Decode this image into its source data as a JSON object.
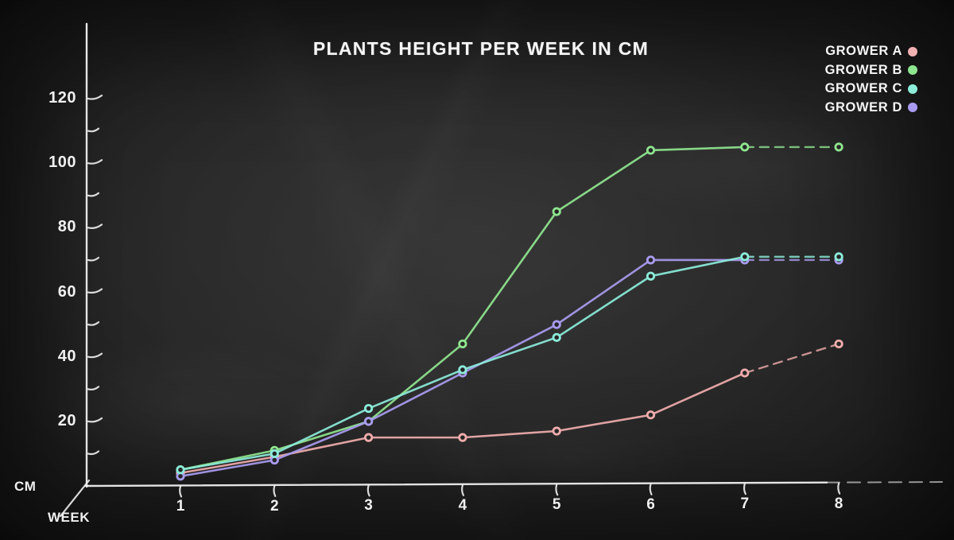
{
  "title": "PLANTS HEIGHT PER WEEK IN CM",
  "legend": [
    {
      "label": "GROWER A",
      "color": "#f2b0b3"
    },
    {
      "label": "GROWER B",
      "color": "#8fe58f"
    },
    {
      "label": "GROWER C",
      "color": "#8cecda"
    },
    {
      "label": "GROWER D",
      "color": "#a99cf0"
    }
  ],
  "axes": {
    "y_unit_label": "CM",
    "x_unit_label": "WEEK",
    "y_major_tick_labels": [
      "20",
      "40",
      "60",
      "80",
      "100",
      "120"
    ],
    "x_tick_labels": [
      "1",
      "2",
      "3",
      "4",
      "5",
      "6",
      "7",
      "8"
    ]
  },
  "chart_data": {
    "type": "line",
    "title": "PLANTS HEIGHT PER WEEK IN CM",
    "xlabel": "WEEK",
    "ylabel": "CM",
    "x": [
      1,
      2,
      3,
      4,
      5,
      6,
      7,
      8
    ],
    "ylim": [
      0,
      130
    ],
    "y_major_ticks": [
      20,
      40,
      60,
      80,
      100,
      120
    ],
    "y_minor_tick_step": 10,
    "grid": false,
    "legend_position": "top-right",
    "style": "hand-drawn chalkboard, last segment (week 7 to 8) dashed",
    "dashed_from_x": 7,
    "series": [
      {
        "name": "GROWER A",
        "color": "#f0acac",
        "values": [
          4,
          9,
          15,
          15,
          17,
          22,
          35,
          44
        ]
      },
      {
        "name": "GROWER B",
        "color": "#8fe58f",
        "values": [
          5,
          11,
          20,
          44,
          85,
          104,
          105,
          105
        ]
      },
      {
        "name": "GROWER C",
        "color": "#8cecda",
        "values": [
          5,
          10,
          24,
          36,
          46,
          65,
          71,
          71
        ]
      },
      {
        "name": "GROWER D",
        "color": "#a99cf0",
        "values": [
          3,
          8,
          20,
          35,
          50,
          70,
          70,
          70
        ]
      }
    ]
  },
  "colors": {
    "background": "#262626",
    "axis": "#efefef",
    "text": "#f5f5f5",
    "dot_center": "#262626"
  }
}
